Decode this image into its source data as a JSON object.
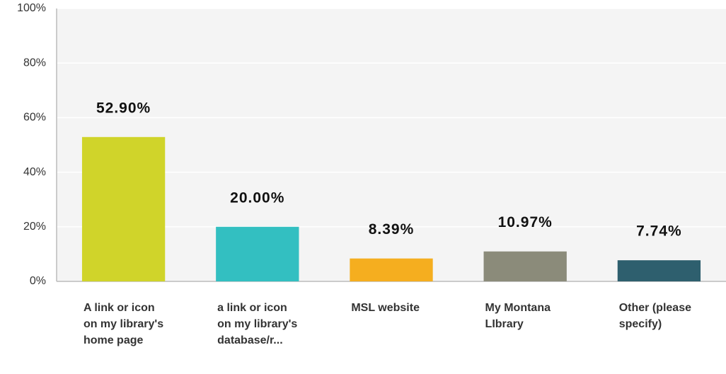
{
  "chart_data": {
    "type": "bar",
    "categories": [
      "A link or icon on my library's home page",
      "a link or icon on my library's database/r...",
      "MSL website",
      "My Montana LIbrary",
      "Other (please specify)"
    ],
    "values": [
      52.9,
      20.0,
      8.39,
      10.97,
      7.74
    ],
    "value_labels": [
      "52.90%",
      "20.00%",
      "8.39%",
      "10.97%",
      "7.74%"
    ],
    "colors": [
      "#d0d42a",
      "#33bfc1",
      "#f5ae1f",
      "#8b8b7a",
      "#2e5f6e"
    ],
    "ylim": [
      0,
      100
    ],
    "yticks": [
      {
        "value": 0,
        "label": "0%"
      },
      {
        "value": 20,
        "label": "20%"
      },
      {
        "value": 40,
        "label": "40%"
      },
      {
        "value": 60,
        "label": "60%"
      },
      {
        "value": 80,
        "label": "80%"
      },
      {
        "value": 100,
        "label": "100%"
      }
    ],
    "grid": true
  }
}
